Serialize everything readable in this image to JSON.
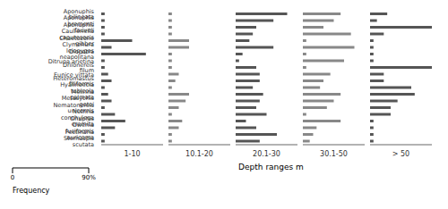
{
  "chart_data": {
    "type": "bar",
    "orientation": "horizontal",
    "xlabel": "Depth ranges m",
    "annotations": [
      "Frequency"
    ],
    "categories": [
      "Aponuphis bilineata",
      "Aponuphis brementi",
      "Aponuphis fauveli",
      "Caulleriella caputesocis",
      "Chaetozone gibber",
      "Clymenura leiopygos",
      "Diopatra neapolitana",
      "Ditrupa arietina",
      "Drilonereis filum",
      "Eunice vittata",
      "Heteromastus filiformis",
      "Hyalinoecia tubicola",
      "Melinna palmata",
      "Metasychis gotoi",
      "Nematonereis unicornis",
      "Nothria conchylega",
      "Onuphis eremita",
      "Owenia fusiformis",
      "Pectinaria auricoma",
      "Sternaspis scutata"
    ],
    "series": [
      {
        "name": "1-10",
        "color": "#555555",
        "values": [
          5,
          5,
          5,
          5,
          45,
          15,
          65,
          5,
          5,
          10,
          15,
          5,
          10,
          15,
          5,
          20,
          35,
          20,
          5,
          5
        ]
      },
      {
        "name": "10.1-20",
        "color": "#888888",
        "values": [
          5,
          5,
          5,
          5,
          30,
          30,
          5,
          5,
          5,
          15,
          10,
          5,
          30,
          25,
          15,
          5,
          20,
          15,
          5,
          5
        ]
      },
      {
        "name": "20.1-30",
        "color": "#555555",
        "values": [
          75,
          55,
          30,
          25,
          20,
          55,
          10,
          5,
          30,
          35,
          35,
          25,
          40,
          35,
          30,
          45,
          15,
          30,
          60,
          35
        ]
      },
      {
        "name": "30.1-50",
        "color": "#888888",
        "values": [
          55,
          45,
          30,
          70,
          5,
          75,
          5,
          60,
          5,
          40,
          30,
          25,
          55,
          45,
          35,
          5,
          55,
          20,
          15,
          10
        ]
      },
      {
        "name": "> 50",
        "color": "#555555",
        "values": [
          25,
          10,
          90,
          20,
          5,
          5,
          5,
          5,
          90,
          20,
          20,
          60,
          65,
          40,
          30,
          30,
          5,
          5,
          5,
          5
        ]
      }
    ],
    "xlim": [
      0,
      90
    ],
    "xticks": [
      0,
      {
        "value": 90,
        "label": "90%"
      }
    ],
    "grid": false
  }
}
